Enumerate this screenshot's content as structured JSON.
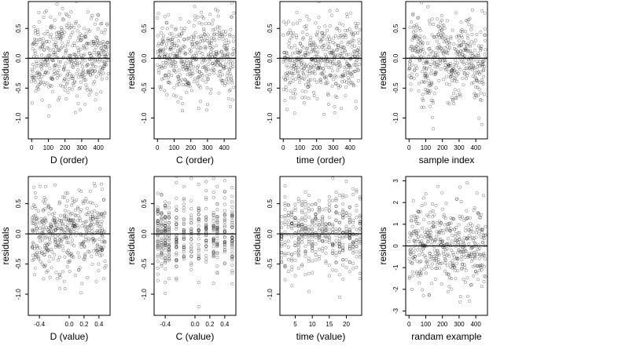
{
  "figure": {
    "background": "#ffffff",
    "point_color": "#000000"
  },
  "chart_data": [
    {
      "type": "scatter",
      "id": "d-order",
      "xlabel": "D (order)",
      "ylabel": "residuals",
      "xlim": [
        -20,
        470
      ],
      "ylim": [
        -1.35,
        0.95
      ],
      "xticks": [
        0,
        100,
        200,
        300,
        400
      ],
      "xtick_labels": [
        "0",
        "100",
        "200",
        "300",
        "400"
      ],
      "yticks": [
        -1.0,
        -0.5,
        0.0,
        0.5
      ],
      "ytick_labels": [
        "-1.0",
        "-0.5",
        "0.0",
        "0.5"
      ],
      "reference_line": 0,
      "n_points": 460,
      "x_kind": "index",
      "y_kind": "residual",
      "seed": 11
    },
    {
      "type": "scatter",
      "id": "c-order",
      "xlabel": "C (order)",
      "ylabel": "residuals",
      "xlim": [
        -20,
        470
      ],
      "ylim": [
        -1.35,
        0.95
      ],
      "xticks": [
        0,
        100,
        200,
        300,
        400
      ],
      "xtick_labels": [
        "0",
        "100",
        "200",
        "300",
        "400"
      ],
      "yticks": [
        -1.0,
        -0.5,
        0.0,
        0.5
      ],
      "ytick_labels": [
        "-1.0",
        "-0.5",
        "0.0",
        "0.5"
      ],
      "reference_line": 0,
      "n_points": 460,
      "x_kind": "index",
      "y_kind": "residual",
      "seed": 23
    },
    {
      "type": "scatter",
      "id": "time-order",
      "xlabel": "time (order)",
      "ylabel": "residuals",
      "xlim": [
        -20,
        470
      ],
      "ylim": [
        -1.35,
        0.95
      ],
      "xticks": [
        0,
        100,
        200,
        300,
        400
      ],
      "xtick_labels": [
        "0",
        "100",
        "200",
        "300",
        "400"
      ],
      "yticks": [
        -1.0,
        -0.5,
        0.0,
        0.5
      ],
      "ytick_labels": [
        "-1.0",
        "-0.5",
        "0.0",
        "0.5"
      ],
      "reference_line": 0,
      "n_points": 460,
      "x_kind": "index",
      "y_kind": "residual",
      "seed": 37
    },
    {
      "type": "scatter",
      "id": "sample-index",
      "xlabel": "sample index",
      "ylabel": "residuals",
      "xlim": [
        -20,
        470
      ],
      "ylim": [
        -1.35,
        0.95
      ],
      "xticks": [
        0,
        100,
        200,
        300,
        400
      ],
      "xtick_labels": [
        "0",
        "100",
        "200",
        "300",
        "400"
      ],
      "yticks": [
        -1.0,
        -0.5,
        0.0,
        0.5
      ],
      "ytick_labels": [
        "-1.0",
        "-0.5",
        "0.0",
        "0.5"
      ],
      "reference_line": 0,
      "n_points": 460,
      "x_kind": "index",
      "y_kind": "wave",
      "seed": 41
    },
    {
      "type": "scatter",
      "id": "d-value",
      "xlabel": "D (value)",
      "ylabel": "residuals",
      "xlim": [
        -0.55,
        0.55
      ],
      "ylim": [
        -1.35,
        0.95
      ],
      "xticks": [
        -0.4,
        0.0,
        0.2,
        0.4
      ],
      "xtick_labels": [
        "-0.4",
        "0.0",
        "0.2",
        "0.4"
      ],
      "yticks": [
        -1.0,
        -0.5,
        0.0,
        0.5
      ],
      "ytick_labels": [
        "-1.0",
        "-0.5",
        "0.0",
        "0.5"
      ],
      "reference_line": 0,
      "n_points": 460,
      "x_kind": "continuous",
      "x_range": [
        -0.5,
        0.5
      ],
      "y_kind": "residual",
      "seed": 53
    },
    {
      "type": "scatter",
      "id": "c-value",
      "xlabel": "C (value)",
      "ylabel": "residuals",
      "xlim": [
        -0.55,
        0.55
      ],
      "ylim": [
        -1.35,
        0.95
      ],
      "xticks": [
        -0.4,
        0.0,
        0.2,
        0.4
      ],
      "xtick_labels": [
        "-0.4",
        "0.0",
        "0.2",
        "0.4"
      ],
      "yticks": [
        -1.0,
        -0.5,
        0.0,
        0.5
      ],
      "ytick_labels": [
        "-1.0",
        "-0.5",
        "0.0",
        "0.5"
      ],
      "reference_line": 0,
      "n_points": 460,
      "x_kind": "discrete",
      "x_levels": [
        -0.5,
        -0.45,
        -0.4,
        -0.35,
        -0.25,
        -0.15,
        -0.05,
        0.05,
        0.15,
        0.25,
        0.3,
        0.4,
        0.5
      ],
      "y_kind": "residual",
      "seed": 67
    },
    {
      "type": "scatter",
      "id": "time-value",
      "xlabel": "time (value)",
      "ylabel": "residuals",
      "xlim": [
        0.5,
        24.5
      ],
      "ylim": [
        -1.35,
        0.95
      ],
      "xticks": [
        5,
        10,
        15,
        20
      ],
      "xtick_labels": [
        "5",
        "10",
        "15",
        "20"
      ],
      "yticks": [
        -1.0,
        -0.5,
        0.0,
        0.5
      ],
      "ytick_labels": [
        "-1.0",
        "-0.5",
        "0.0",
        "0.5"
      ],
      "reference_line": 0,
      "n_points": 460,
      "x_kind": "discrete",
      "x_levels": [
        1,
        2,
        3,
        4,
        5,
        6,
        7,
        8,
        9,
        10,
        11,
        12,
        13,
        14,
        15,
        16,
        17,
        18,
        19,
        20,
        21,
        22,
        23,
        24
      ],
      "y_kind": "residual",
      "seed": 79
    },
    {
      "type": "scatter",
      "id": "random-example",
      "xlabel": "randam example",
      "ylabel": "residuals",
      "xlim": [
        -20,
        470
      ],
      "ylim": [
        -3.2,
        3.2
      ],
      "xticks": [
        0,
        100,
        200,
        300,
        400
      ],
      "xtick_labels": [
        "0",
        "100",
        "200",
        "300",
        "400"
      ],
      "yticks": [
        -3,
        -2,
        -1,
        0,
        1,
        2,
        3
      ],
      "ytick_labels": [
        "-3",
        "-2",
        "-1",
        "0",
        "1",
        "2",
        "3"
      ],
      "reference_line": 0,
      "n_points": 460,
      "x_kind": "index",
      "y_kind": "normal",
      "seed": 97
    }
  ]
}
